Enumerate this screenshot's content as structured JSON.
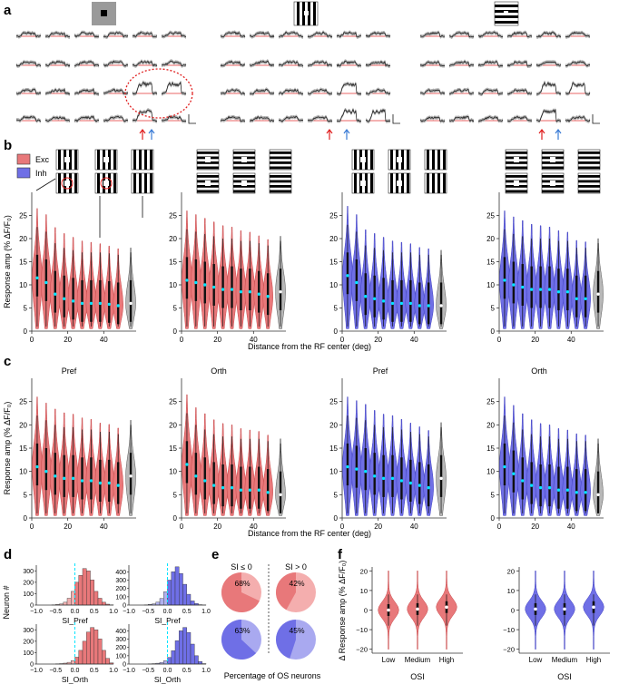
{
  "panel_letters": {
    "a": "a",
    "b": "b",
    "c": "c",
    "d": "d",
    "e": "e",
    "f": "f"
  },
  "colors": {
    "exc": "#e8787a",
    "exc_dark": "#c84a4c",
    "inh": "#6f6fe6",
    "inh_dark": "#3f3fc0",
    "null": "#b8b8b8",
    "median": "#00e5ff",
    "trace_red": "#e03030",
    "arrow_red": "#e02020",
    "arrow_blue": "#3a7bd5"
  },
  "legend": {
    "exc": "Exc",
    "inh": "Inh"
  },
  "axis": {
    "response_ylabel": "Response amp (% ΔF/F₀)",
    "distance_xlabel": "Distance from the RF center (deg)",
    "y_ticks": [
      "0",
      "5",
      "10",
      "15",
      "20",
      "25"
    ],
    "x_ticks": [
      "0",
      "20",
      "40"
    ]
  },
  "panel_c_titles": [
    "Pref",
    "Orth",
    "Pref",
    "Orth"
  ],
  "panel_d": {
    "ylabel": "Neuron #",
    "xlabels": [
      "SI_Pref",
      "SI_Pref",
      "SI_Orth",
      "SI_Orth"
    ],
    "x_ticks": [
      "−1.0",
      "−0.5",
      "0.0",
      "0.5",
      "1.0"
    ],
    "y_ticks_exc": [
      "0",
      "100",
      "200",
      "300"
    ],
    "y_ticks_inh": [
      "0",
      "100",
      "200",
      "300",
      "400"
    ]
  },
  "panel_e": {
    "headers": [
      "SI ≤ 0",
      "SI > 0"
    ],
    "pct": [
      "68%",
      "42%",
      "63%",
      "45%"
    ],
    "caption": "Percentage of OS neurons"
  },
  "panel_f": {
    "ylabel": "Δ Response amp (% ΔF/F₀)",
    "xlabel": "OSI",
    "categories": [
      "Low",
      "Medium",
      "High"
    ],
    "y_ticks": [
      "−20",
      "−10",
      "0",
      "10",
      "20"
    ]
  },
  "chart_data": [
    {
      "type": "violin",
      "panel": "b1",
      "series": "Exc",
      "x": [
        3,
        8,
        13,
        18,
        23,
        28,
        33,
        38,
        43,
        48,
        55
      ],
      "medians": [
        11.5,
        10.5,
        8,
        7,
        6.5,
        6,
        6,
        6,
        5.8,
        5.5,
        6
      ],
      "xlabel": "Distance from the RF center (deg)",
      "ylabel": "Response amp (% ΔF/F₀)",
      "ylim": [
        0,
        30
      ]
    },
    {
      "type": "violin",
      "panel": "b2",
      "series": "Exc",
      "x": [
        3,
        8,
        13,
        18,
        23,
        28,
        33,
        38,
        43,
        48,
        55
      ],
      "medians": [
        11,
        10.5,
        10,
        9.5,
        9,
        9,
        8.5,
        8.5,
        8,
        7.5,
        8.5
      ],
      "ylim": [
        0,
        30
      ]
    },
    {
      "type": "violin",
      "panel": "b3",
      "series": "Inh",
      "x": [
        3,
        8,
        13,
        18,
        23,
        28,
        33,
        38,
        43,
        48,
        55
      ],
      "medians": [
        12,
        10.5,
        7.5,
        7,
        6.5,
        6,
        6,
        6,
        5.5,
        5.5,
        5.5
      ],
      "ylim": [
        0,
        30
      ]
    },
    {
      "type": "violin",
      "panel": "b4",
      "series": "Inh",
      "x": [
        3,
        8,
        13,
        18,
        23,
        28,
        33,
        38,
        43,
        48,
        55
      ],
      "medians": [
        11,
        10,
        9.5,
        9,
        9,
        9,
        8.5,
        8.5,
        7,
        7,
        8
      ],
      "ylim": [
        0,
        30
      ]
    },
    {
      "type": "violin",
      "panel": "c1",
      "title": "Pref",
      "series": "Exc",
      "x": [
        3,
        8,
        13,
        18,
        23,
        28,
        33,
        38,
        43,
        48,
        55
      ],
      "medians": [
        11,
        10,
        9,
        8.5,
        8.5,
        8,
        8,
        7.5,
        7.5,
        7,
        9
      ],
      "ylim": [
        0,
        30
      ]
    },
    {
      "type": "violin",
      "panel": "c2",
      "title": "Orth",
      "series": "Exc",
      "x": [
        3,
        8,
        13,
        18,
        23,
        28,
        33,
        38,
        43,
        48,
        55
      ],
      "medians": [
        11.5,
        9,
        8,
        7,
        6.5,
        6.5,
        6,
        6,
        6,
        5.5,
        5
      ],
      "ylim": [
        0,
        30
      ]
    },
    {
      "type": "violin",
      "panel": "c3",
      "title": "Pref",
      "series": "Inh",
      "x": [
        3,
        8,
        13,
        18,
        23,
        28,
        33,
        38,
        43,
        48,
        55
      ],
      "medians": [
        11,
        10.5,
        10,
        9,
        8.5,
        8.5,
        8,
        7.5,
        7,
        6.5,
        8.5
      ],
      "ylim": [
        0,
        30
      ]
    },
    {
      "type": "violin",
      "panel": "c4",
      "title": "Orth",
      "series": "Inh",
      "x": [
        3,
        8,
        13,
        18,
        23,
        28,
        33,
        38,
        43,
        48,
        55
      ],
      "medians": [
        11,
        9.5,
        8,
        7,
        6.5,
        6.5,
        6,
        6,
        5.5,
        5.5,
        5
      ],
      "ylim": [
        0,
        30
      ]
    },
    {
      "type": "bar",
      "panel": "d",
      "name": "SI_Pref Exc",
      "bins": [
        -1,
        -0.9,
        -0.8,
        -0.7,
        -0.6,
        -0.5,
        -0.4,
        -0.3,
        -0.2,
        -0.1,
        0,
        0.1,
        0.2,
        0.3,
        0.4,
        0.5,
        0.6,
        0.7,
        0.8,
        0.9
      ],
      "counts": [
        0,
        0,
        0,
        0,
        2,
        5,
        10,
        25,
        60,
        120,
        200,
        260,
        320,
        300,
        220,
        120,
        60,
        25,
        8,
        2
      ],
      "ylim": [
        0,
        350
      ]
    },
    {
      "type": "bar",
      "panel": "d",
      "name": "SI_Pref Inh",
      "bins": [
        -1,
        -0.9,
        -0.8,
        -0.7,
        -0.6,
        -0.5,
        -0.4,
        -0.3,
        -0.2,
        -0.1,
        0,
        0.1,
        0.2,
        0.3,
        0.4,
        0.5,
        0.6,
        0.7,
        0.8,
        0.9
      ],
      "counts": [
        0,
        0,
        0,
        0,
        3,
        8,
        15,
        35,
        80,
        160,
        300,
        400,
        460,
        380,
        250,
        130,
        50,
        20,
        5,
        1
      ],
      "ylim": [
        0,
        480
      ]
    },
    {
      "type": "bar",
      "panel": "d",
      "name": "SI_Orth Exc",
      "bins": [
        -1,
        -0.9,
        -0.8,
        -0.7,
        -0.6,
        -0.5,
        -0.4,
        -0.3,
        -0.2,
        -0.1,
        0,
        0.1,
        0.2,
        0.3,
        0.4,
        0.5,
        0.6,
        0.7,
        0.8,
        0.9
      ],
      "counts": [
        0,
        0,
        0,
        0,
        0,
        2,
        4,
        8,
        15,
        30,
        60,
        120,
        200,
        280,
        320,
        300,
        220,
        120,
        50,
        10
      ],
      "ylim": [
        0,
        350
      ]
    },
    {
      "type": "bar",
      "panel": "d",
      "name": "SI_Orth Inh",
      "bins": [
        -1,
        -0.9,
        -0.8,
        -0.7,
        -0.6,
        -0.5,
        -0.4,
        -0.3,
        -0.2,
        -0.1,
        0,
        0.1,
        0.2,
        0.3,
        0.4,
        0.5,
        0.6,
        0.7,
        0.8,
        0.9
      ],
      "counts": [
        0,
        0,
        0,
        0,
        0,
        2,
        5,
        10,
        20,
        40,
        80,
        160,
        280,
        400,
        440,
        380,
        240,
        100,
        30,
        5
      ],
      "ylim": [
        0,
        480
      ]
    },
    {
      "type": "pie",
      "panel": "e",
      "values": [
        68,
        42,
        63,
        45
      ],
      "labels": [
        "SI ≤ 0 Exc",
        "SI > 0 Exc",
        "SI ≤ 0 Inh",
        "SI > 0 Inh"
      ]
    },
    {
      "type": "violin",
      "panel": "f",
      "series": "Exc",
      "categories": [
        "Low",
        "Medium",
        "High"
      ],
      "medians": [
        0,
        0.5,
        1.5
      ],
      "ylim": [
        -22,
        22
      ]
    },
    {
      "type": "violin",
      "panel": "f",
      "series": "Inh",
      "categories": [
        "Low",
        "Medium",
        "High"
      ],
      "medians": [
        0.5,
        0.5,
        1.5
      ],
      "ylim": [
        -22,
        22
      ]
    }
  ]
}
